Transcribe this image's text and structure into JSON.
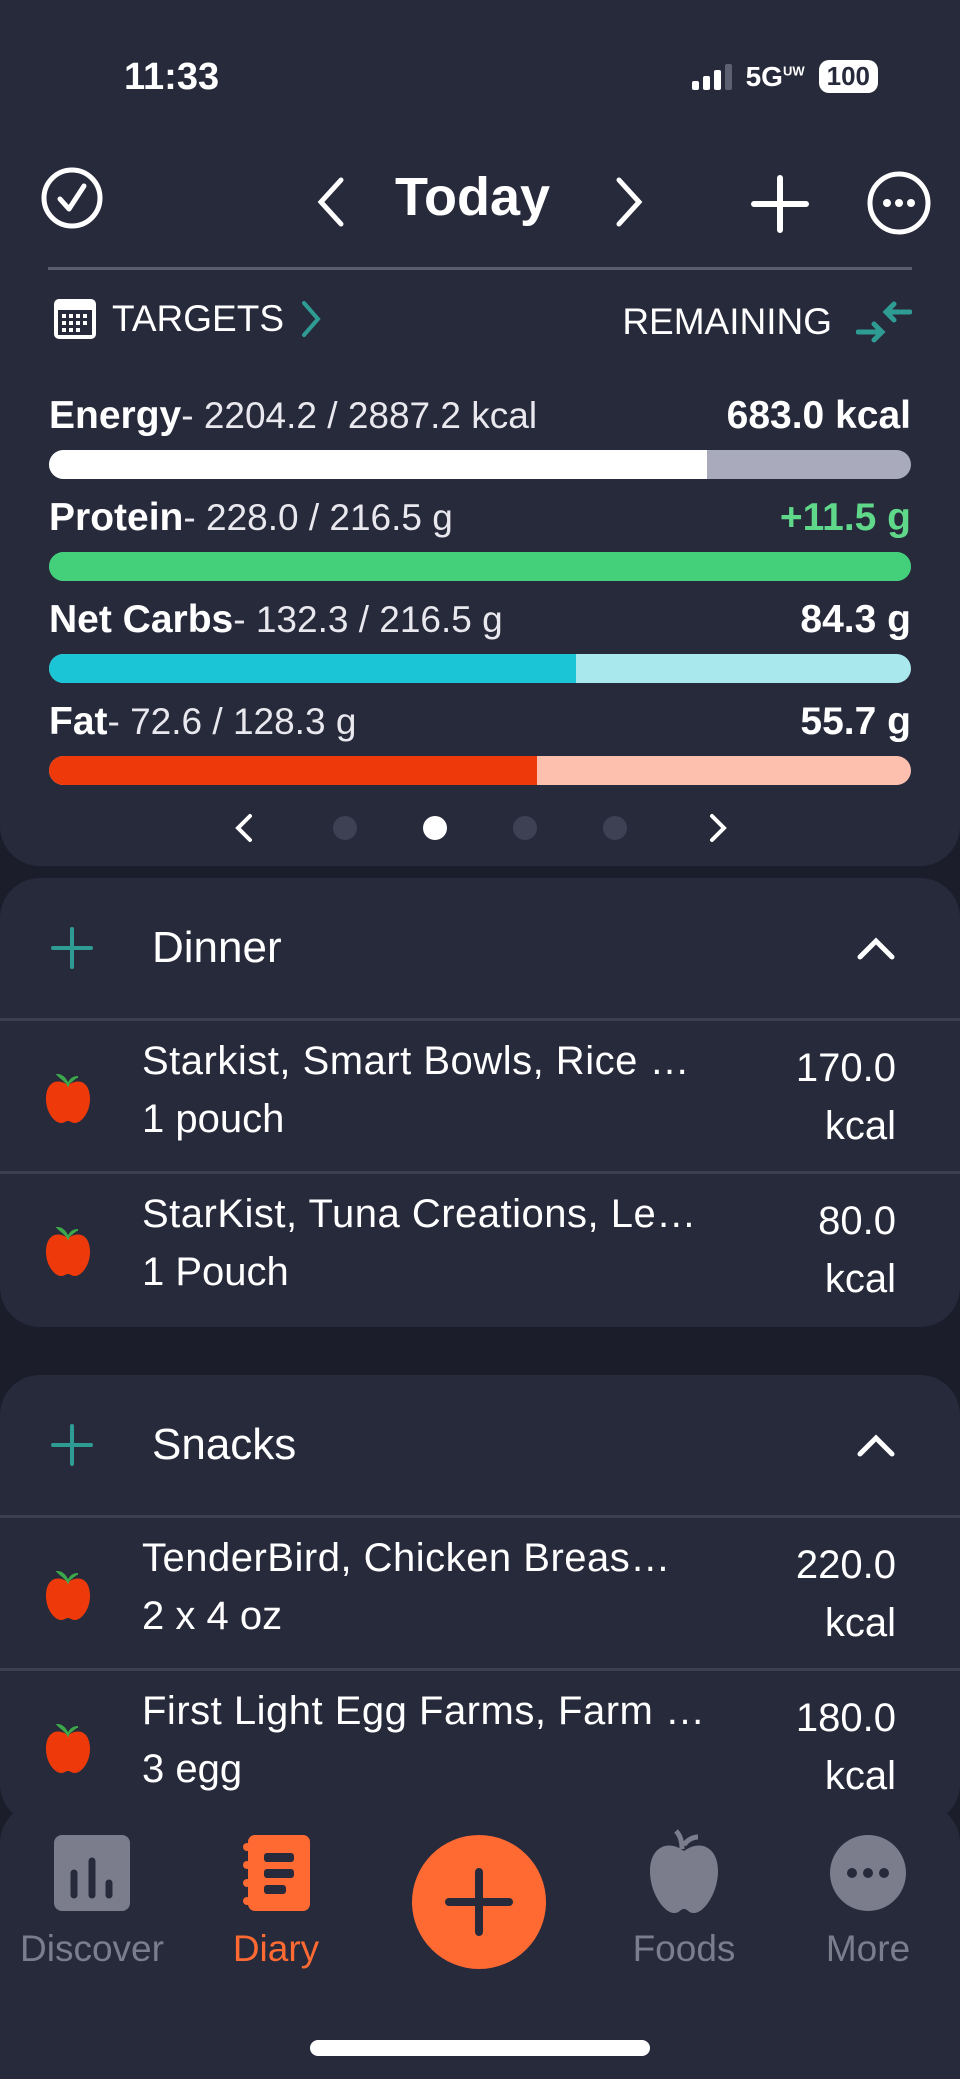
{
  "status": {
    "time": "11:33",
    "network": "5G",
    "network_sup": "UW",
    "battery": "100"
  },
  "header": {
    "title": "Today",
    "icons": [
      "check-circle-icon",
      "chevron-left-icon",
      "chevron-right-icon",
      "plus-icon",
      "more-circle-icon"
    ]
  },
  "targets": {
    "label": "TARGETS",
    "mode": "REMAINING"
  },
  "nutrients": [
    {
      "name": "Energy",
      "detail": "- 2204.2 / 2887.2 kcal",
      "remaining": "683.0 kcal",
      "progress": 0.763,
      "fill": "#ffffff",
      "track": "#a9abbd",
      "remaining_color": "#ffffff"
    },
    {
      "name": "Protein",
      "detail": "- 228.0 / 216.5 g",
      "remaining": "+11.5 g",
      "progress": 1.0,
      "fill": "#44d07b",
      "track": "#44d07b",
      "remaining_color": "#5fd88a"
    },
    {
      "name": "Net Carbs",
      "detail": "- 132.3 / 216.5 g",
      "remaining": "84.3 g",
      "progress": 0.611,
      "fill": "#1cc5d6",
      "track": "#a9e9ee",
      "remaining_color": "#ffffff"
    },
    {
      "name": "Fat",
      "detail": "- 72.6 / 128.3 g",
      "remaining": "55.7 g",
      "progress": 0.566,
      "fill": "#ee3a0a",
      "track": "#fdc0ae",
      "remaining_color": "#ffffff"
    }
  ],
  "pager": {
    "pages": 4,
    "active": 1
  },
  "meals": [
    {
      "title": "Dinner",
      "items": [
        {
          "name": "Starkist, Smart Bowls, Rice …",
          "qty": "1 pouch",
          "kcal": "170.0",
          "unit": "kcal"
        },
        {
          "name": "StarKist, Tuna Creations, Le…",
          "qty": "1 Pouch",
          "kcal": "80.0",
          "unit": "kcal"
        }
      ]
    },
    {
      "title": "Snacks",
      "items": [
        {
          "name": "TenderBird, Chicken Breas…",
          "qty": "2 x 4 oz",
          "kcal": "220.0",
          "unit": "kcal"
        },
        {
          "name": "First Light Egg Farms, Farm …",
          "qty": "3 egg",
          "kcal": "180.0",
          "unit": "kcal"
        }
      ]
    }
  ],
  "tabs": [
    {
      "label": "Discover"
    },
    {
      "label": "Diary",
      "active": true
    },
    {
      "label": ""
    },
    {
      "label": "Foods"
    },
    {
      "label": "More"
    }
  ],
  "colors": {
    "accent": "#ff6a33",
    "teal": "#2e9c93",
    "bg": "#272a3b",
    "inactive": "#7b7d8c"
  }
}
